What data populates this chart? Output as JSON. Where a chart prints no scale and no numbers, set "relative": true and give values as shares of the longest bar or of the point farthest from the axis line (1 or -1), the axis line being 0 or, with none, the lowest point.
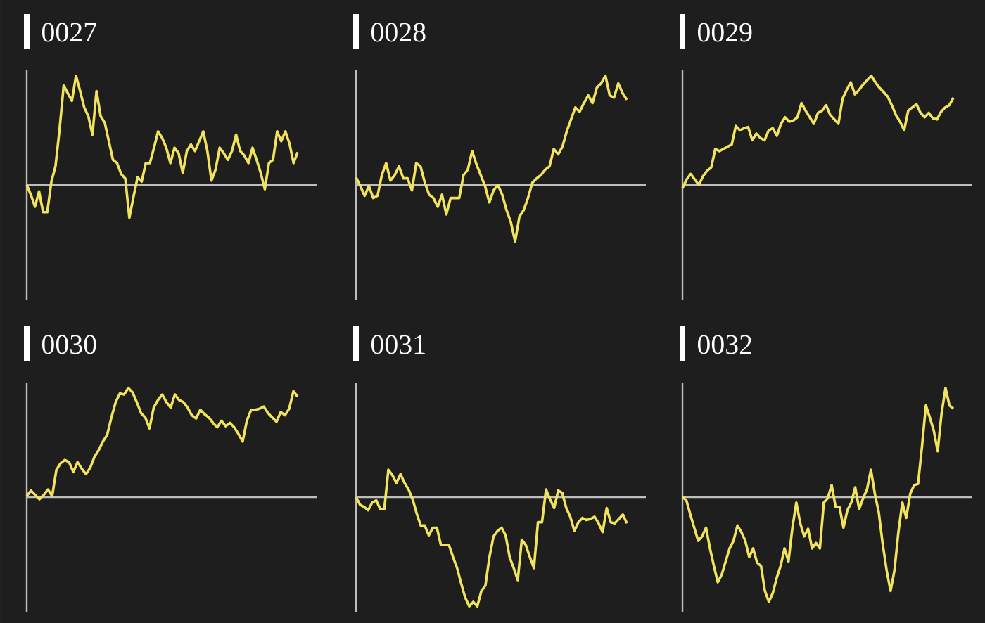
{
  "chart_data": [
    {
      "type": "line",
      "title": "0027",
      "relative": true,
      "color": "#f2e35c",
      "categories": [
        null,
        null,
        null,
        null,
        null,
        null,
        null,
        null,
        null,
        null,
        null,
        null,
        null,
        null,
        null,
        null,
        null,
        null,
        null,
        null,
        null,
        null,
        null,
        null,
        null,
        null,
        null,
        null,
        null,
        null,
        null,
        null,
        null,
        null,
        null,
        null,
        null,
        null,
        null,
        null,
        null,
        null,
        null,
        null,
        null,
        null,
        null,
        null,
        null,
        null,
        null,
        null,
        null,
        null,
        null,
        null,
        null,
        null,
        null,
        null,
        null,
        null,
        null,
        null,
        null,
        null,
        null
      ],
      "values": [
        0,
        -0.09,
        -0.2,
        -0.06,
        -0.25,
        -0.25,
        0.03,
        0.17,
        0.51,
        0.91,
        0.84,
        0.77,
        1,
        0.86,
        0.71,
        0.63,
        0.46,
        0.86,
        0.63,
        0.57,
        0.4,
        0.23,
        0.2,
        0.1,
        0.06,
        -0.3,
        -0.11,
        0.07,
        0.03,
        0.2,
        0.2,
        0.34,
        0.49,
        0.43,
        0.34,
        0.2,
        0.34,
        0.29,
        0.11,
        0.31,
        0.37,
        0.31,
        0.4,
        0.49,
        0.31,
        0.04,
        0.14,
        0.34,
        0.29,
        0.23,
        0.31,
        0.46,
        0.31,
        0.27,
        0.2,
        0.34,
        0.23,
        0.11,
        -0.04,
        0.2,
        0.23,
        0.49,
        0.4,
        0.49,
        0.38,
        0.2,
        0.3
      ]
    },
    {
      "type": "line",
      "title": "0028",
      "relative": true,
      "color": "#f2e35c",
      "categories": [
        null,
        null,
        null,
        null,
        null,
        null,
        null,
        null,
        null,
        null,
        null,
        null,
        null,
        null,
        null,
        null,
        null,
        null,
        null,
        null,
        null,
        null,
        null,
        null,
        null,
        null,
        null,
        null,
        null,
        null,
        null,
        null,
        null,
        null,
        null,
        null,
        null,
        null,
        null,
        null,
        null,
        null,
        null,
        null,
        null,
        null,
        null,
        null,
        null,
        null,
        null,
        null,
        null,
        null,
        null,
        null,
        null,
        null,
        null,
        null,
        null,
        null,
        null,
        null
      ],
      "values": [
        0.07,
        -0.01,
        -0.1,
        -0.01,
        -0.12,
        -0.1,
        0.09,
        0.2,
        0.04,
        0.09,
        0.17,
        0.06,
        0.06,
        -0.05,
        0.2,
        0.17,
        0.02,
        -0.09,
        -0.12,
        -0.2,
        -0.09,
        -0.27,
        -0.12,
        -0.12,
        -0.12,
        0.09,
        0.14,
        0.31,
        0.19,
        0.09,
        -0.01,
        -0.16,
        -0.05,
        0,
        -0.09,
        -0.23,
        -0.34,
        -0.52,
        -0.29,
        -0.23,
        -0.12,
        0.02,
        0.06,
        0.09,
        0.14,
        0.17,
        0.33,
        0.28,
        0.35,
        0.49,
        0.6,
        0.71,
        0.67,
        0.75,
        0.82,
        0.75,
        0.89,
        0.93,
        1,
        0.82,
        0.8,
        0.93,
        0.84,
        0.78
      ]
    },
    {
      "type": "line",
      "title": "0029",
      "relative": true,
      "color": "#f2e35c",
      "categories": [
        null,
        null,
        null,
        null,
        null,
        null,
        null,
        null,
        null,
        null,
        null,
        null,
        null,
        null,
        null,
        null,
        null,
        null,
        null,
        null,
        null,
        null,
        null,
        null,
        null,
        null,
        null,
        null,
        null,
        null,
        null,
        null,
        null,
        null,
        null,
        null,
        null,
        null,
        null,
        null,
        null,
        null,
        null,
        null,
        null,
        null,
        null,
        null,
        null,
        null,
        null,
        null,
        null,
        null,
        null,
        null,
        null,
        null,
        null,
        null,
        null,
        null,
        null,
        null,
        null,
        null,
        null
      ],
      "values": [
        -0.03,
        0.05,
        0.1,
        0.05,
        0,
        0.08,
        0.13,
        0.16,
        0.33,
        0.31,
        0.33,
        0.35,
        0.37,
        0.54,
        0.5,
        0.52,
        0.53,
        0.41,
        0.47,
        0.43,
        0.41,
        0.5,
        0.52,
        0.45,
        0.56,
        0.62,
        0.58,
        0.59,
        0.62,
        0.75,
        0.68,
        0.62,
        0.56,
        0.66,
        0.68,
        0.73,
        0.64,
        0.6,
        0.56,
        0.79,
        0.87,
        0.94,
        0.83,
        0.87,
        0.92,
        0.96,
        1,
        0.94,
        0.89,
        0.85,
        0.81,
        0.73,
        0.64,
        0.58,
        0.5,
        0.68,
        0.71,
        0.74,
        0.66,
        0.62,
        0.66,
        0.61,
        0.6,
        0.67,
        0.71,
        0.73,
        0.8
      ]
    },
    {
      "type": "line",
      "title": "0030",
      "relative": true,
      "color": "#f2e35c",
      "categories": [
        null,
        null,
        null,
        null,
        null,
        null,
        null,
        null,
        null,
        null,
        null,
        null,
        null,
        null,
        null,
        null,
        null,
        null,
        null,
        null,
        null,
        null,
        null,
        null,
        null,
        null,
        null,
        null,
        null,
        null,
        null,
        null,
        null,
        null,
        null,
        null,
        null,
        null,
        null,
        null,
        null,
        null,
        null,
        null,
        null,
        null,
        null,
        null,
        null,
        null,
        null,
        null,
        null,
        null,
        null,
        null,
        null,
        null,
        null,
        null,
        null,
        null,
        null,
        null,
        null
      ],
      "values": [
        0.01,
        0.06,
        0.02,
        -0.02,
        0.02,
        0.07,
        0.01,
        0.25,
        0.31,
        0.34,
        0.32,
        0.23,
        0.32,
        0.26,
        0.21,
        0.27,
        0.37,
        0.43,
        0.51,
        0.57,
        0.73,
        0.87,
        0.95,
        0.94,
        1,
        0.96,
        0.87,
        0.77,
        0.73,
        0.63,
        0.82,
        0.89,
        0.94,
        0.87,
        0.82,
        0.94,
        0.89,
        0.87,
        0.82,
        0.75,
        0.72,
        0.8,
        0.76,
        0.73,
        0.68,
        0.64,
        0.7,
        0.65,
        0.68,
        0.64,
        0.58,
        0.51,
        0.7,
        0.8,
        0.8,
        0.81,
        0.83,
        0.77,
        0.73,
        0.69,
        0.78,
        0.75,
        0.81,
        0.97,
        0.92
      ]
    },
    {
      "type": "line",
      "title": "0031",
      "relative": true,
      "color": "#f2e35c",
      "categories": [
        null,
        null,
        null,
        null,
        null,
        null,
        null,
        null,
        null,
        null,
        null,
        null,
        null,
        null,
        null,
        null,
        null,
        null,
        null,
        null,
        null,
        null,
        null,
        null,
        null,
        null,
        null,
        null,
        null,
        null,
        null,
        null,
        null,
        null,
        null,
        null,
        null,
        null,
        null,
        null,
        null,
        null,
        null,
        null,
        null,
        null,
        null,
        null,
        null,
        null,
        null,
        null,
        null,
        null,
        null,
        null,
        null,
        null,
        null,
        null,
        null,
        null,
        null,
        null,
        null,
        null,
        null,
        null
      ],
      "values": [
        0,
        -0.07,
        -0.09,
        -0.12,
        -0.05,
        -0.03,
        -0.11,
        -0.11,
        0.25,
        0.2,
        0.13,
        0.21,
        0.13,
        0.07,
        -0.02,
        -0.15,
        -0.26,
        -0.26,
        -0.35,
        -0.28,
        -0.28,
        -0.44,
        -0.44,
        -0.44,
        -0.55,
        -0.65,
        -0.79,
        -0.92,
        -1,
        -0.96,
        -1,
        -0.86,
        -0.81,
        -0.55,
        -0.36,
        -0.31,
        -0.28,
        -0.35,
        -0.55,
        -0.65,
        -0.76,
        -0.39,
        -0.44,
        -0.55,
        -0.65,
        -0.23,
        -0.23,
        0.07,
        -0.02,
        -0.1,
        0.06,
        0.04,
        -0.1,
        -0.18,
        -0.31,
        -0.23,
        -0.19,
        -0.21,
        -0.2,
        -0.18,
        -0.24,
        -0.32,
        -0.1,
        -0.23,
        -0.24,
        -0.2,
        -0.16,
        -0.24
      ]
    },
    {
      "type": "line",
      "title": "0032",
      "relative": true,
      "color": "#f2e35c",
      "categories": [
        null,
        null,
        null,
        null,
        null,
        null,
        null,
        null,
        null,
        null,
        null,
        null,
        null,
        null,
        null,
        null,
        null,
        null,
        null,
        null,
        null,
        null,
        null,
        null,
        null,
        null,
        null,
        null,
        null,
        null,
        null,
        null,
        null,
        null,
        null,
        null,
        null,
        null,
        null,
        null,
        null,
        null,
        null,
        null,
        null,
        null,
        null,
        null,
        null,
        null,
        null,
        null,
        null,
        null,
        null,
        null,
        null,
        null,
        null,
        null,
        null,
        null,
        null,
        null,
        null,
        null,
        null,
        null,
        null,
        null
      ],
      "values": [
        0,
        -0.03,
        -0.16,
        -0.28,
        -0.4,
        -0.36,
        -0.28,
        -0.47,
        -0.63,
        -0.78,
        -0.71,
        -0.59,
        -0.47,
        -0.4,
        -0.26,
        -0.32,
        -0.4,
        -0.55,
        -0.47,
        -0.6,
        -0.63,
        -0.86,
        -0.96,
        -0.88,
        -0.74,
        -0.63,
        -0.47,
        -0.59,
        -0.28,
        -0.05,
        -0.24,
        -0.36,
        -0.29,
        -0.47,
        -0.42,
        -0.47,
        -0.05,
        -0.01,
        0.11,
        -0.09,
        -0.09,
        -0.28,
        -0.12,
        -0.05,
        0.09,
        -0.11,
        -0.01,
        0.07,
        0.25,
        0.03,
        -0.14,
        -0.43,
        -0.67,
        -0.86,
        -0.67,
        -0.32,
        -0.05,
        -0.19,
        0.03,
        0.11,
        0.12,
        0.46,
        0.84,
        0.73,
        0.61,
        0.42,
        0.77,
        1,
        0.84,
        0.81
      ]
    }
  ]
}
